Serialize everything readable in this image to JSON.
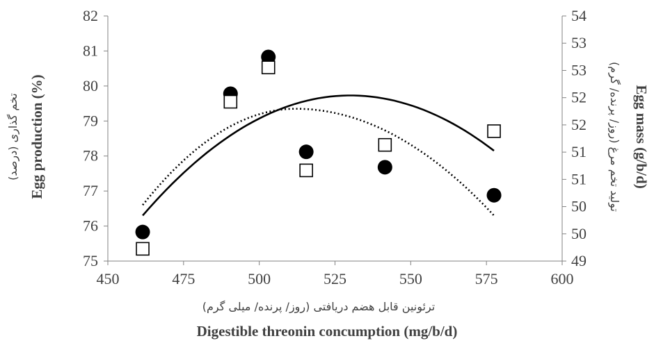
{
  "chart_data": {
    "type": "scatter",
    "xlabel_fa": "ترئونین قابل هضم دریافتی (روز/ پرنده/ میلی گرم)",
    "xlabel": "Digestible threonin concumption (mg/b/d)",
    "ylabel_fa": "تخم گذاری (درصد)",
    "ylabel": "Egg production (%)",
    "y2label_fa": "تولید تخم مرغ (روز/ پرنده/ گرم)",
    "y2label": "Egg mass (g/b/d)",
    "xlim": [
      450,
      600
    ],
    "ylim": [
      75,
      82
    ],
    "y2lim": [
      49,
      54
    ],
    "x_ticks": [
      "450",
      "475",
      "500",
      "525",
      "550",
      "575",
      "600"
    ],
    "y_ticks": [
      "75",
      "76",
      "77",
      "78",
      "79",
      "80",
      "81",
      "82"
    ],
    "y2_ticks": [
      "49",
      "50",
      "50",
      "51",
      "51",
      "52",
      "52",
      "53",
      "53",
      "54"
    ],
    "grid": false,
    "series": [
      {
        "marker": "filled-circle",
        "axis": "left",
        "x": [
          461.5,
          490.5,
          503,
          515.5,
          541.5,
          577.5
        ],
        "y": [
          75.83,
          79.78,
          80.83,
          78.12,
          77.68,
          76.88
        ]
      },
      {
        "marker": "open-square",
        "axis": "right",
        "x": [
          461.5,
          490.5,
          503,
          515.5,
          541.5,
          577.5
        ],
        "y": [
          49.25,
          52.25,
          52.95,
          50.85,
          51.37,
          51.65
        ]
      }
    ],
    "trendlines": [
      {
        "style": "solid",
        "axis": "left",
        "x_range": [
          461.5,
          577.5
        ],
        "vertex": [
          530,
          79.73
        ],
        "y_at_start": 76.3,
        "y_at_end": 78.15
      },
      {
        "style": "dotted",
        "axis": "left",
        "x_range": [
          461.5,
          577.5
        ],
        "vertex": [
          512,
          79.35
        ],
        "y_at_start": 76.6,
        "y_at_end": 76.3
      }
    ],
    "colors": {
      "axis": "#808080",
      "text": "#404040",
      "marker": "#000000"
    }
  }
}
